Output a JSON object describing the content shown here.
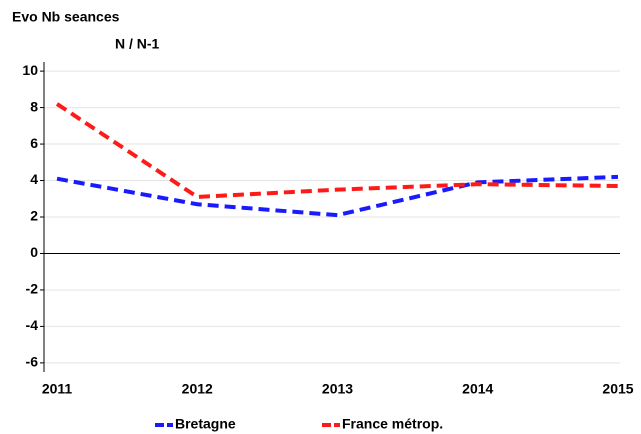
{
  "chart_data": {
    "type": "line",
    "title": "Evo Nb seances",
    "subtitle": "N / N-1",
    "x": [
      2011,
      2012,
      2013,
      2014,
      2015
    ],
    "xlim": [
      2011,
      2015
    ],
    "xticks": [
      2011,
      2012,
      2013,
      2014,
      2015
    ],
    "ylim": [
      -6.5,
      10.5
    ],
    "yticks": [
      -6,
      -4,
      -2,
      0,
      2,
      4,
      6,
      8,
      10
    ],
    "grid": true,
    "legend": "bottom",
    "series": [
      {
        "name": "Bretagne",
        "color": "#1a1aff",
        "values": [
          4.1,
          2.7,
          2.1,
          3.9,
          4.2
        ]
      },
      {
        "name": "France métrop.",
        "color": "#ff1a1a",
        "values": [
          8.2,
          3.1,
          3.5,
          3.8,
          3.7
        ]
      }
    ]
  }
}
